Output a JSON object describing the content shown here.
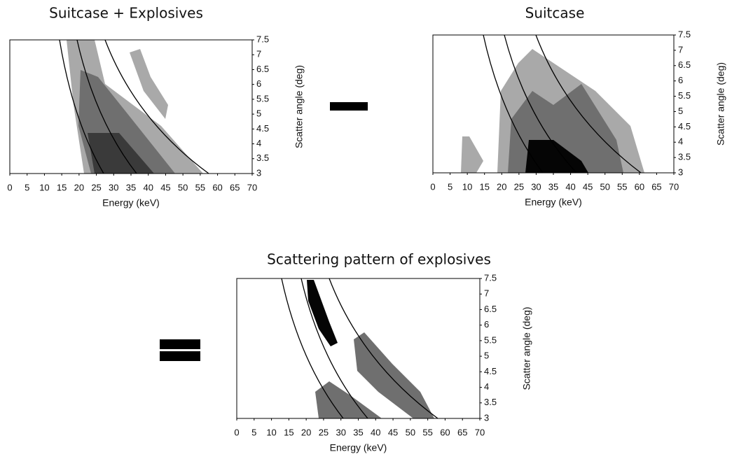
{
  "chart_data": [
    {
      "type": "contour",
      "title": "Suitcase + Explosives",
      "xlabel": "Energy (keV)",
      "ylabel": "Scatter angle (deg)",
      "xlim": [
        0,
        70
      ],
      "ylim": [
        3,
        7.5
      ],
      "xticks": [
        0,
        5,
        10,
        15,
        20,
        25,
        30,
        35,
        40,
        45,
        50,
        55,
        60,
        65,
        70
      ],
      "yticks": [
        3,
        3.5,
        4,
        4.5,
        5,
        5.5,
        6,
        6.5,
        7,
        7.5
      ]
    },
    {
      "type": "contour",
      "title": "Suitcase",
      "xlabel": "Energy (keV)",
      "ylabel": "Scatter angle (deg)",
      "xlim": [
        0,
        70
      ],
      "ylim": [
        3,
        7.5
      ],
      "xticks": [
        0,
        5,
        10,
        15,
        20,
        25,
        30,
        35,
        40,
        45,
        50,
        55,
        60,
        65,
        70
      ],
      "yticks": [
        3,
        3.5,
        4,
        4.5,
        5,
        5.5,
        6,
        6.5,
        7,
        7.5
      ]
    },
    {
      "type": "contour",
      "title": "Scattering pattern of explosives",
      "xlabel": "Energy (keV)",
      "ylabel": "Scatter angle (deg)",
      "xlim": [
        0,
        70
      ],
      "ylim": [
        3,
        7.5
      ],
      "xticks": [
        0,
        5,
        10,
        15,
        20,
        25,
        30,
        35,
        40,
        45,
        50,
        55,
        60,
        65,
        70
      ],
      "yticks": [
        3,
        3.5,
        4,
        4.5,
        5,
        5.5,
        6,
        6.5,
        7,
        7.5
      ]
    }
  ]
}
